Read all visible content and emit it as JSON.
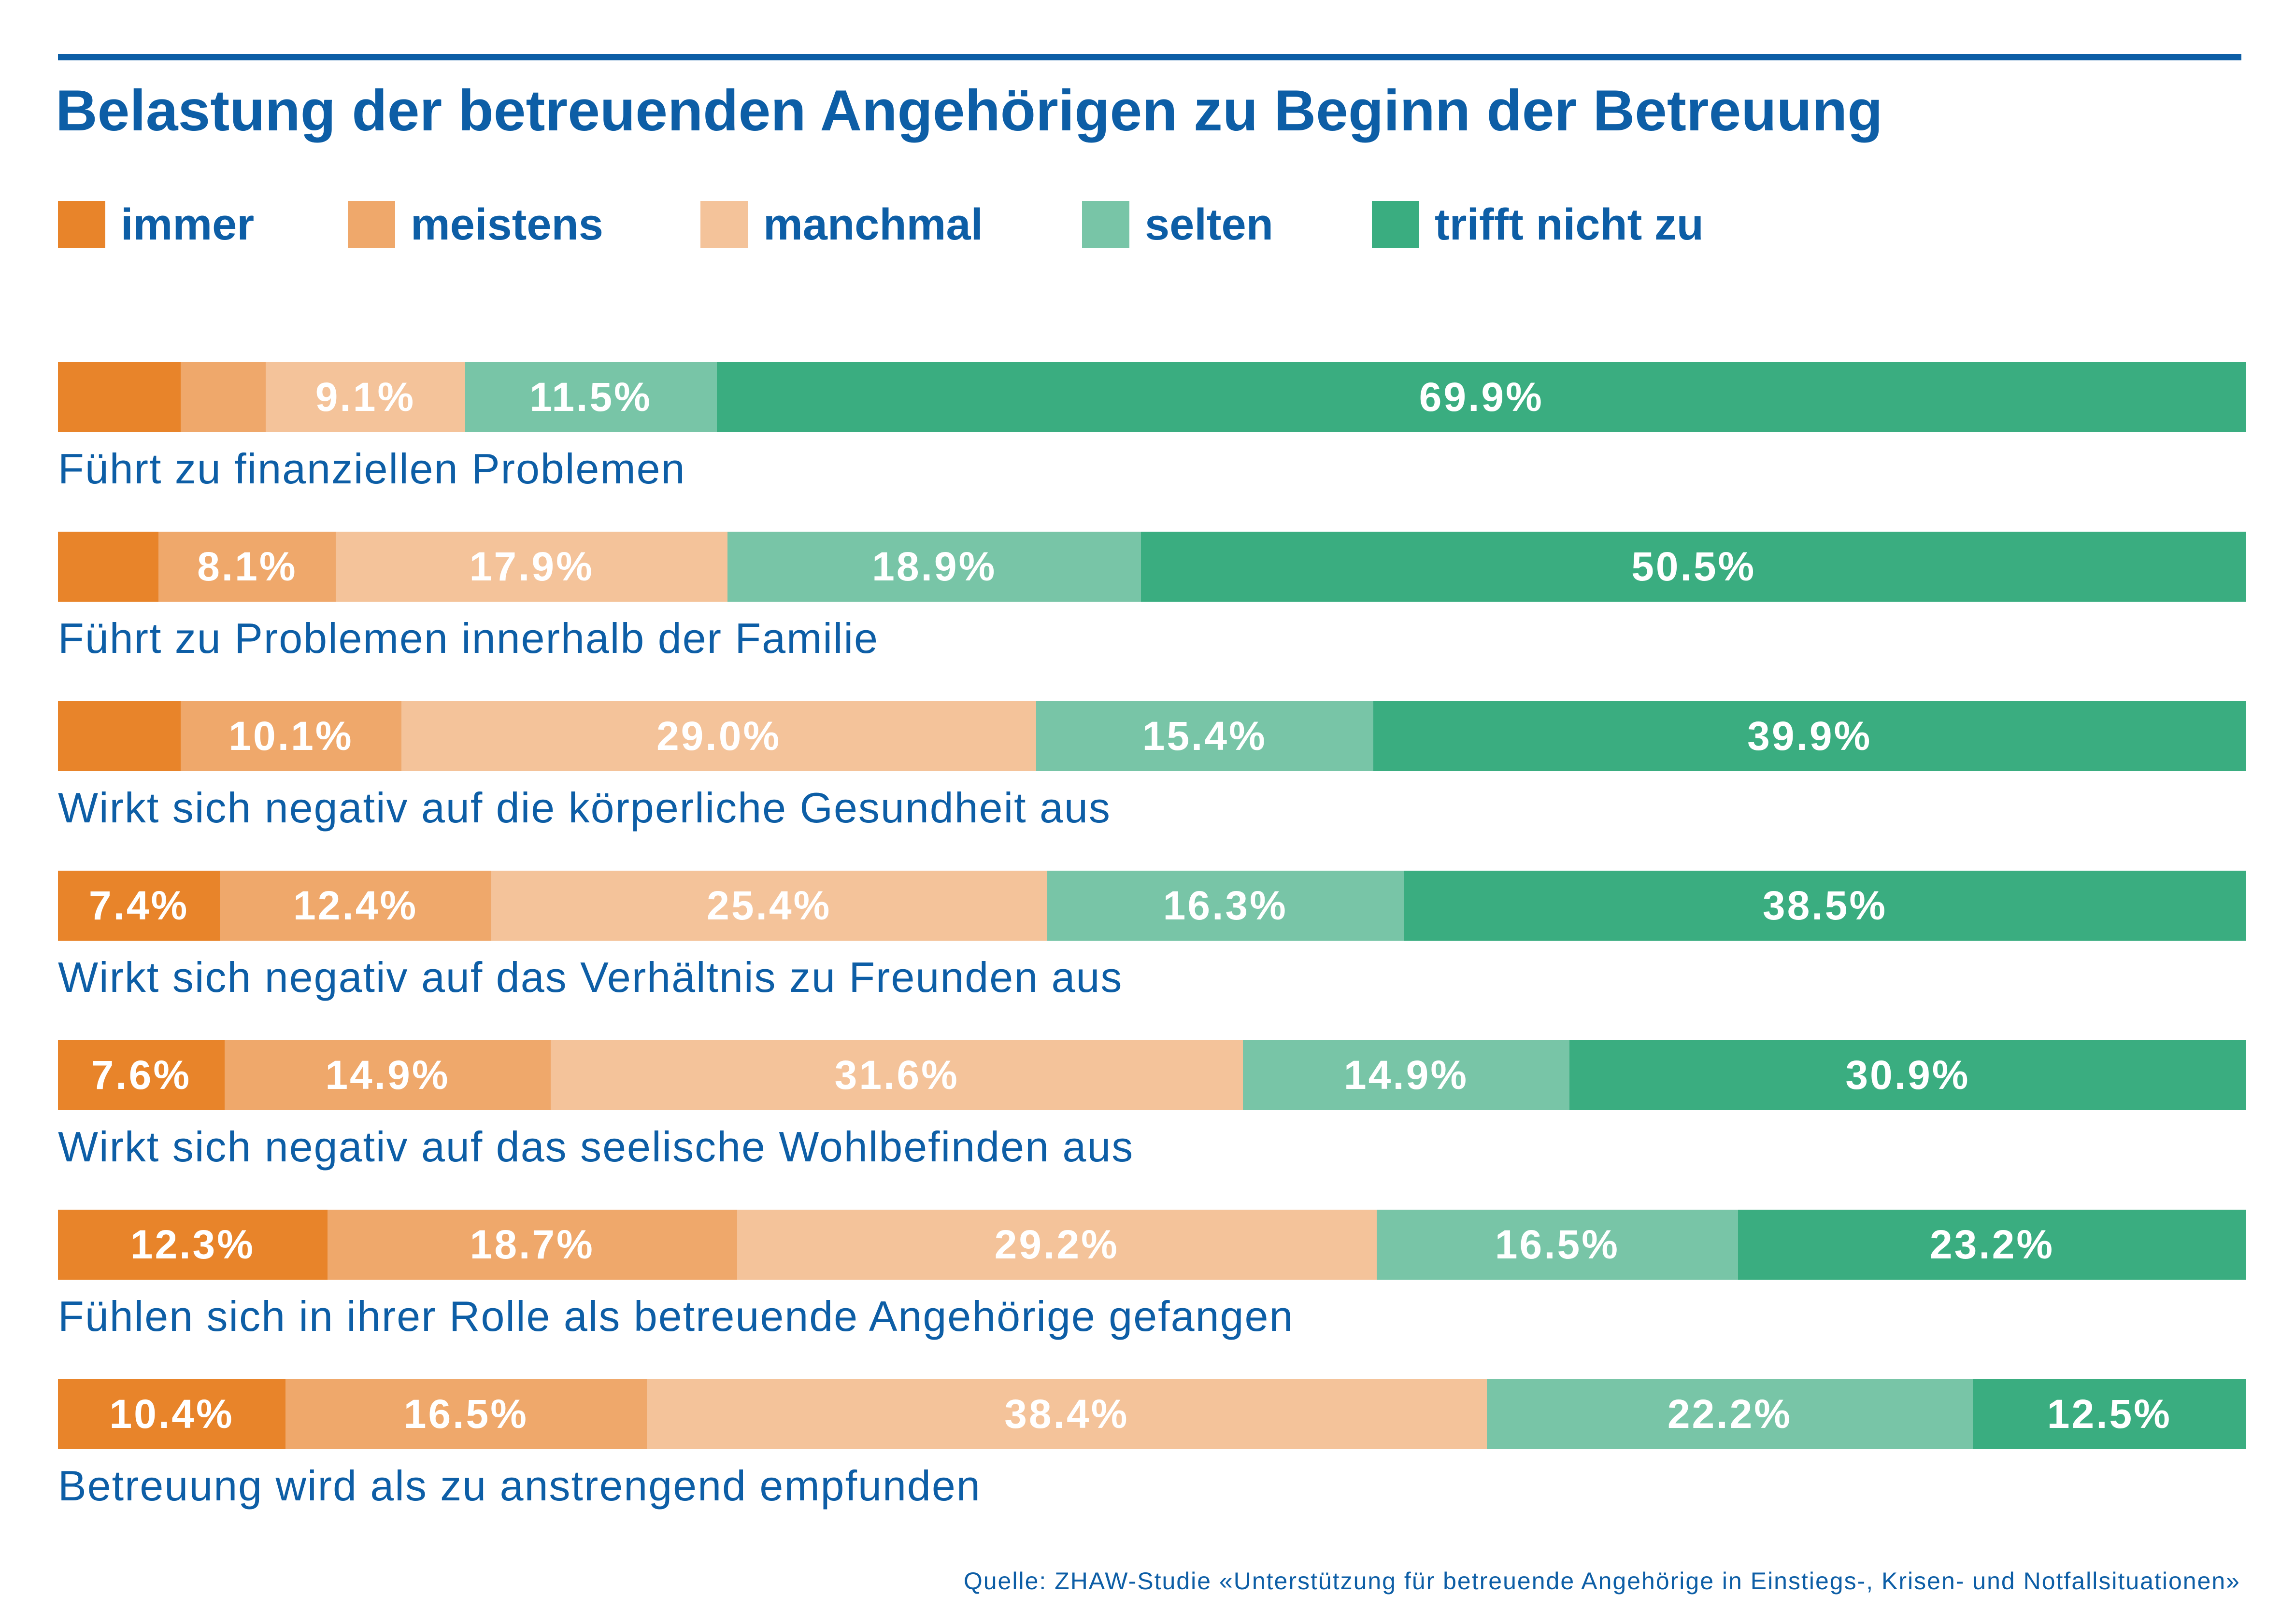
{
  "title": "Belastung der betreuenden Angehörigen zu Beginn der Betreuung",
  "source": "Quelle: ZHAW-Studie «Unterstützung für betreuende Angehörige in Einstiegs-, Krisen- und Notfallsituationen»",
  "colors": {
    "accent": "#0d5ea6",
    "immer": "#e8842a",
    "meistens": "#efa86b",
    "manchmal": "#f4c39a",
    "selten": "#78c5a7",
    "trifft_nicht_zu": "#3aad80"
  },
  "chart_data": {
    "type": "bar",
    "orientation": "horizontal",
    "stacked": true,
    "title": "Belastung der betreuenden Angehörigen zu Beginn der Betreuung",
    "xlim": [
      0,
      100
    ],
    "legend_position": "top",
    "grid": false,
    "categories": [
      "Führt zu finanziellen Problemen",
      "Führt zu Problemen innerhalb der Familie",
      "Wirkt sich negativ auf die körperliche Gesundheit aus",
      "Wirkt sich negativ auf das Verhältnis zu Freunden aus",
      "Wirkt sich negativ auf das seelische Wohlbefinden aus",
      "Fühlen sich in ihrer Rolle als betreuende Angehörige gefangen",
      "Betreuung wird als zu anstrengend empfunden"
    ],
    "series": [
      {
        "name": "immer",
        "color": "#e8842a",
        "values": [
          5.6,
          4.6,
          5.6,
          7.4,
          7.6,
          12.3,
          10.4
        ],
        "labels": [
          "",
          "",
          "",
          "7.4%",
          "7.6%",
          "12.3%",
          "10.4%"
        ]
      },
      {
        "name": "meistens",
        "color": "#efa86b",
        "values": [
          3.9,
          8.1,
          10.1,
          12.4,
          14.9,
          18.7,
          16.5
        ],
        "labels": [
          "",
          "8.1%",
          "10.1%",
          "12.4%",
          "14.9%",
          "18.7%",
          "16.5%"
        ]
      },
      {
        "name": "manchmal",
        "color": "#f4c39a",
        "values": [
          9.1,
          17.9,
          29.0,
          25.4,
          31.6,
          29.2,
          38.4
        ],
        "labels": [
          "9.1%",
          "17.9%",
          "29.0%",
          "25.4%",
          "31.6%",
          "29.2%",
          "38.4%"
        ]
      },
      {
        "name": "selten",
        "color": "#78c5a7",
        "values": [
          11.5,
          18.9,
          15.4,
          16.3,
          14.9,
          16.5,
          22.2
        ],
        "labels": [
          "11.5%",
          "18.9%",
          "15.4%",
          "16.3%",
          "14.9%",
          "16.5%",
          "22.2%"
        ]
      },
      {
        "name": "trifft nicht zu",
        "color": "#3aad80",
        "values": [
          69.9,
          50.5,
          39.9,
          38.5,
          30.9,
          23.2,
          12.5
        ],
        "labels": [
          "69.9%",
          "50.5%",
          "39.9%",
          "38.5%",
          "30.9%",
          "23.2%",
          "12.5%"
        ]
      }
    ]
  }
}
